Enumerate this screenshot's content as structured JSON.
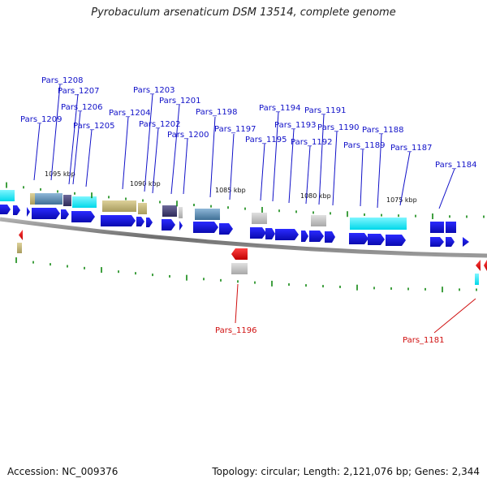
{
  "title": "Pyrobaculum arsenaticum DSM 13514, complete genome",
  "footer": {
    "accession": "Accession: NC_009376",
    "summary": "Topology: circular; Length: 2,121,076 bp; Genes: 2,344"
  },
  "colors": {
    "forward_label": "#1010c8",
    "reverse_label": "#d01010",
    "cds_forward": "#1515dd",
    "cds_reverse": "#ee1111",
    "tick": "#118811",
    "backbone": "#808080"
  },
  "kbp_labels": [
    "1095 kbp",
    "1090 kbp",
    "1085 kbp",
    "1080 kbp",
    "1075 kbp"
  ],
  "forward_genes": [
    "Pars_1208",
    "Pars_1207",
    "Pars_1206",
    "Pars_1209",
    "Pars_1205",
    "Pars_1203",
    "Pars_1204",
    "Pars_1201",
    "Pars_1202",
    "Pars_1198",
    "Pars_1200",
    "Pars_1197",
    "Pars_1194",
    "Pars_1191",
    "Pars_1193",
    "Pars_1190",
    "Pars_1188",
    "Pars_1195",
    "Pars_1192",
    "Pars_1189",
    "Pars_1187",
    "Pars_1184"
  ],
  "reverse_genes": [
    "Pars_1196",
    "Pars_1181"
  ]
}
